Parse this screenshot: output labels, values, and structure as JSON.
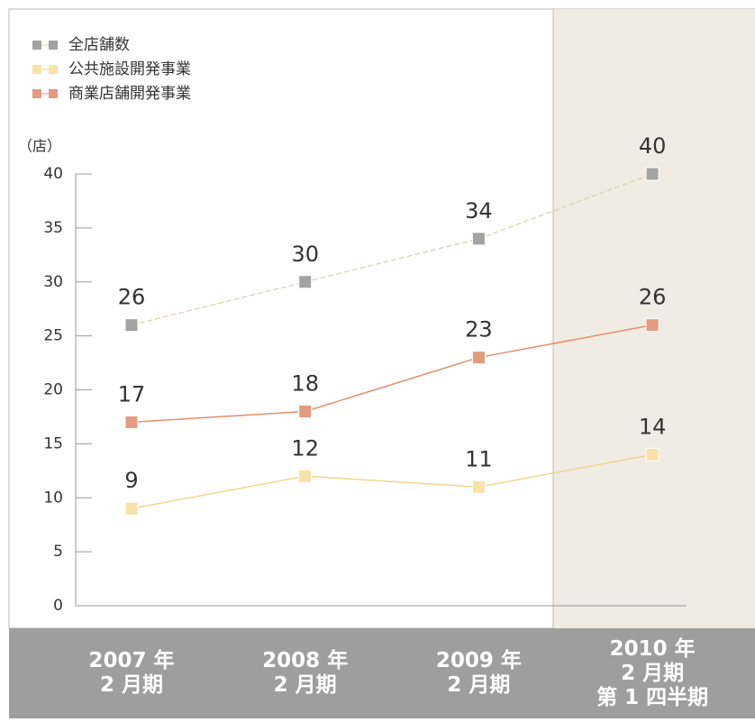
{
  "chart_data": {
    "type": "line",
    "y_label": "（店）",
    "categories": [
      "2007 年\n2 月期",
      "2008 年\n2 月期",
      "2009 年\n2 月期",
      "2010 年\n2 月期\n第 1 四半期"
    ],
    "series": [
      {
        "name": "全店舗数",
        "color": "#a3a3a3",
        "line_color": "#d9d0b0",
        "values": [
          26,
          30,
          34,
          40
        ]
      },
      {
        "name": "公共施設開発事業",
        "color": "#f7e3a8",
        "line_color": "#f0d68e",
        "values": [
          9,
          12,
          11,
          14
        ]
      },
      {
        "name": "商業店舗開発事業",
        "color": "#e39a7e",
        "line_color": "#e0906f",
        "values": [
          17,
          18,
          23,
          26
        ]
      }
    ],
    "ylim": [
      0,
      40
    ],
    "yticks": [
      0,
      5,
      10,
      15,
      20,
      25,
      30,
      35,
      40
    ]
  }
}
